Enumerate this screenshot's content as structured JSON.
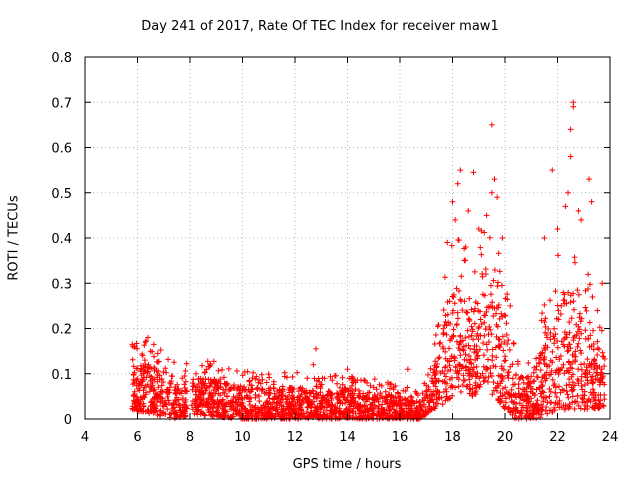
{
  "chart_data": {
    "type": "scatter",
    "title": "Day 241 of 2017, Rate Of TEC Index for receiver maw1",
    "xlabel": "GPS time / hours",
    "ylabel": "ROTI / TECUs",
    "xlim": [
      4,
      24
    ],
    "ylim": [
      0,
      0.8
    ],
    "xticks": [
      "4",
      "6",
      "8",
      "10",
      "12",
      "14",
      "16",
      "18",
      "20",
      "22",
      "24"
    ],
    "yticks": [
      "0",
      "0.1",
      "0.2",
      "0.3",
      "0.4",
      "0.5",
      "0.6",
      "0.7",
      "0.8"
    ],
    "grid": true,
    "legend": "none",
    "marker": "plus",
    "color": "#ff0000",
    "envelope": [
      {
        "x": 5.8,
        "lo": 0.02,
        "hi": 0.12
      },
      {
        "x": 6.5,
        "lo": 0.01,
        "hi": 0.12
      },
      {
        "x": 7.5,
        "lo": 0.0,
        "hi": 0.08
      },
      {
        "x": 8.2,
        "lo": 0.01,
        "hi": 0.09
      },
      {
        "x": 9.0,
        "lo": 0.005,
        "hi": 0.09
      },
      {
        "x": 10.0,
        "lo": 0.0,
        "hi": 0.07
      },
      {
        "x": 11.0,
        "lo": 0.0,
        "hi": 0.07
      },
      {
        "x": 12.0,
        "lo": 0.0,
        "hi": 0.07
      },
      {
        "x": 13.0,
        "lo": 0.0,
        "hi": 0.06
      },
      {
        "x": 14.0,
        "lo": 0.0,
        "hi": 0.07
      },
      {
        "x": 15.0,
        "lo": 0.0,
        "hi": 0.06
      },
      {
        "x": 16.0,
        "lo": 0.0,
        "hi": 0.05
      },
      {
        "x": 16.8,
        "lo": 0.0,
        "hi": 0.04
      },
      {
        "x": 17.2,
        "lo": 0.02,
        "hi": 0.1
      },
      {
        "x": 17.6,
        "lo": 0.03,
        "hi": 0.2
      },
      {
        "x": 18.0,
        "lo": 0.05,
        "hi": 0.3
      },
      {
        "x": 18.4,
        "lo": 0.06,
        "hi": 0.28
      },
      {
        "x": 18.8,
        "lo": 0.05,
        "hi": 0.24
      },
      {
        "x": 19.2,
        "lo": 0.07,
        "hi": 0.34
      },
      {
        "x": 19.6,
        "lo": 0.05,
        "hi": 0.3
      },
      {
        "x": 20.0,
        "lo": 0.02,
        "hi": 0.22
      },
      {
        "x": 20.4,
        "lo": 0.0,
        "hi": 0.1
      },
      {
        "x": 20.8,
        "lo": 0.0,
        "hi": 0.09
      },
      {
        "x": 21.2,
        "lo": 0.0,
        "hi": 0.12
      },
      {
        "x": 21.6,
        "lo": 0.01,
        "hi": 0.2
      },
      {
        "x": 22.0,
        "lo": 0.02,
        "hi": 0.26
      },
      {
        "x": 22.4,
        "lo": 0.02,
        "hi": 0.3
      },
      {
        "x": 22.8,
        "lo": 0.02,
        "hi": 0.24
      },
      {
        "x": 23.2,
        "lo": 0.02,
        "hi": 0.22
      },
      {
        "x": 23.6,
        "lo": 0.02,
        "hi": 0.18
      },
      {
        "x": 23.8,
        "lo": 0.03,
        "hi": 0.15
      }
    ],
    "outliers": [
      {
        "x": 5.8,
        "y": 0.165
      },
      {
        "x": 5.9,
        "y": 0.16
      },
      {
        "x": 6.2,
        "y": 0.14
      },
      {
        "x": 6.3,
        "y": 0.17
      },
      {
        "x": 6.4,
        "y": 0.18
      },
      {
        "x": 6.5,
        "y": 0.15
      },
      {
        "x": 7.3,
        "y": 0.095
      },
      {
        "x": 7.8,
        "y": 0.095
      },
      {
        "x": 12.8,
        "y": 0.155
      },
      {
        "x": 12.7,
        "y": 0.12
      },
      {
        "x": 14.0,
        "y": 0.11
      },
      {
        "x": 16.3,
        "y": 0.11
      },
      {
        "x": 15.0,
        "y": 0.07
      },
      {
        "x": 18.2,
        "y": 0.52
      },
      {
        "x": 18.3,
        "y": 0.55
      },
      {
        "x": 18.1,
        "y": 0.44
      },
      {
        "x": 17.8,
        "y": 0.39
      },
      {
        "x": 18.0,
        "y": 0.48
      },
      {
        "x": 18.6,
        "y": 0.46
      },
      {
        "x": 18.8,
        "y": 0.545
      },
      {
        "x": 19.0,
        "y": 0.42
      },
      {
        "x": 19.3,
        "y": 0.45
      },
      {
        "x": 19.5,
        "y": 0.5
      },
      {
        "x": 19.6,
        "y": 0.53
      },
      {
        "x": 19.5,
        "y": 0.65
      },
      {
        "x": 19.7,
        "y": 0.49
      },
      {
        "x": 19.9,
        "y": 0.4
      },
      {
        "x": 21.8,
        "y": 0.55
      },
      {
        "x": 21.5,
        "y": 0.4
      },
      {
        "x": 22.0,
        "y": 0.42
      },
      {
        "x": 22.3,
        "y": 0.47
      },
      {
        "x": 22.4,
        "y": 0.5
      },
      {
        "x": 22.5,
        "y": 0.58
      },
      {
        "x": 22.5,
        "y": 0.64
      },
      {
        "x": 22.6,
        "y": 0.7
      },
      {
        "x": 22.6,
        "y": 0.69
      },
      {
        "x": 22.8,
        "y": 0.46
      },
      {
        "x": 22.9,
        "y": 0.44
      },
      {
        "x": 23.2,
        "y": 0.53
      },
      {
        "x": 23.3,
        "y": 0.48
      },
      {
        "x": 23.7,
        "y": 0.3
      },
      {
        "x": 20.2,
        "y": 0.25
      },
      {
        "x": 18.5,
        "y": 0.38
      }
    ]
  }
}
